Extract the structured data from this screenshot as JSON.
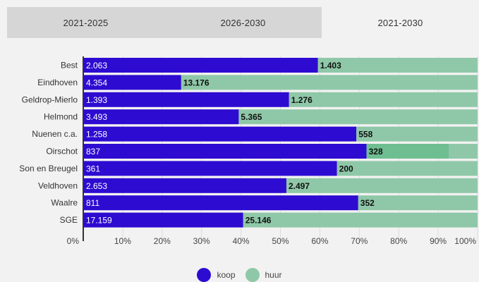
{
  "tabs": [
    {
      "label": "2021-2025",
      "active": false
    },
    {
      "label": "2026-2030",
      "active": false
    },
    {
      "label": "2021-2030",
      "active": true
    }
  ],
  "colors": {
    "koop": "#2e0bd1",
    "huur": "#8fc8a8",
    "huur_highlight": "#6fbe92",
    "axis": "#333333",
    "grid": "#dddddd"
  },
  "chart_data": {
    "type": "bar",
    "orientation": "horizontal",
    "stacking": "percent",
    "categories": [
      "Best",
      "Eindhoven",
      "Geldrop-Mierlo",
      "Helmond",
      "Nuenen c.a.",
      "Oirschot",
      "Son en Breugel",
      "Veldhoven",
      "Waalre",
      "SGE"
    ],
    "series": [
      {
        "name": "koop",
        "values": [
          2063,
          4354,
          1393,
          3493,
          1258,
          837,
          361,
          2653,
          811,
          17159
        ],
        "labels": [
          "2.063",
          "4.354",
          "1.393",
          "3.493",
          "1.258",
          "837",
          "361",
          "2.653",
          "811",
          "17.159"
        ]
      },
      {
        "name": "huur",
        "values": [
          1403,
          13176,
          1276,
          5365,
          558,
          328,
          200,
          2497,
          352,
          25146
        ],
        "labels": [
          "1.403",
          "13.176",
          "1.276",
          "5.365",
          "558",
          "328",
          "200",
          "2.497",
          "352",
          "25.146"
        ]
      }
    ],
    "highlighted_category": "Oirschot",
    "xlim": [
      0,
      100
    ],
    "xticks": [
      "0%",
      "10%",
      "20%",
      "30%",
      "40%",
      "50%",
      "60%",
      "70%",
      "80%",
      "90%",
      "100%"
    ],
    "grid": true,
    "legend": "bottom-center"
  },
  "legend": [
    {
      "label": "koop",
      "color": "#2e0bd1"
    },
    {
      "label": "huur",
      "color": "#8fc8a8"
    }
  ]
}
